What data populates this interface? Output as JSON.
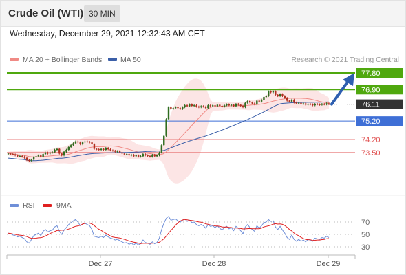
{
  "header": {
    "title": "Crude Oil (WTI)",
    "timeframe": "30 MIN"
  },
  "timestamp": "Wednesday, December 29, 2021 12:32:43 AM CET",
  "legend": {
    "items": [
      {
        "label": "MA 20 + Bollinger Bands",
        "color": "#f08a85"
      },
      {
        "label": "MA 50",
        "color": "#3b5fa8"
      }
    ],
    "credit": "Research © 2021 Trading Central"
  },
  "rsi_legend": {
    "items": [
      {
        "label": "RSI",
        "color": "#6f8fd8"
      },
      {
        "label": "9MA",
        "color": "#e02020"
      }
    ]
  },
  "levels": [
    {
      "label": "77.80",
      "value": 77.8,
      "kind": "resistance"
    },
    {
      "label": "76.90",
      "value": 76.9,
      "kind": "resistance"
    },
    {
      "label": "76.11",
      "value": 76.11,
      "kind": "current"
    },
    {
      "label": "75.20",
      "value": 75.2,
      "kind": "pivot"
    },
    {
      "label": "74.20",
      "value": 74.2,
      "kind": "support"
    },
    {
      "label": "73.50",
      "value": 73.5,
      "kind": "support"
    }
  ],
  "rsi_axis": [
    "70",
    "50",
    "30"
  ],
  "x_axis": [
    "Dec 27",
    "Dec 28",
    "Dec 29"
  ],
  "colors": {
    "resistance": "#4fa80e",
    "pivot": "#3e6fd6",
    "support": "#e05050",
    "current": "#333333",
    "candle_up": "#2f6b1f",
    "candle_down": "#b03020",
    "arrow": "#2e5fb0"
  },
  "chart_data": {
    "type": "candlestick",
    "ylim": [
      72.2,
      78.4
    ],
    "closes": [
      73.45,
      73.42,
      73.4,
      73.35,
      73.3,
      73.32,
      73.28,
      73.22,
      73.1,
      73.05,
      73.12,
      73.25,
      73.3,
      73.35,
      73.28,
      73.42,
      73.5,
      73.45,
      73.5,
      73.52,
      73.65,
      73.7,
      73.45,
      73.35,
      73.55,
      73.65,
      73.8,
      73.9,
      74.0,
      74.1,
      74.05,
      73.95,
      74.05,
      74.1,
      74.08,
      74.05,
      73.95,
      73.7,
      73.68,
      73.65,
      73.7,
      73.65,
      73.75,
      73.68,
      73.62,
      73.6,
      73.55,
      73.58,
      73.52,
      73.45,
      73.4,
      73.42,
      73.35,
      73.38,
      73.3,
      73.35,
      73.28,
      73.3,
      73.42,
      73.35,
      73.32,
      73.28,
      73.38,
      73.3,
      73.35,
      73.5,
      73.9,
      74.4,
      75.3,
      75.95,
      75.85,
      75.9,
      75.95,
      75.9,
      75.85,
      75.95,
      76.05,
      76.0,
      76.1,
      76.02,
      76.05,
      75.98,
      75.95,
      76.0,
      75.98,
      75.9,
      76.05,
      76.0,
      76.05,
      76.0,
      76.08,
      76.02,
      75.98,
      76.05,
      76.1,
      76.05,
      76.08,
      76.0,
      76.12,
      76.08,
      76.02,
      75.95,
      76.18,
      76.28,
      76.2,
      76.15,
      76.1,
      76.3,
      76.25,
      76.35,
      76.5,
      76.55,
      76.8,
      76.75,
      76.8,
      76.62,
      76.55,
      76.65,
      76.55,
      76.45,
      76.3,
      76.25,
      76.35,
      76.2,
      76.15,
      76.18,
      76.12,
      76.15,
      76.08,
      76.12,
      76.1,
      76.05,
      76.12,
      76.1,
      76.08,
      76.12,
      76.1,
      76.15,
      76.11
    ],
    "rsi": [
      52,
      51,
      49,
      48,
      46,
      47,
      45,
      43,
      38,
      36,
      42,
      48,
      50,
      52,
      48,
      55,
      58,
      54,
      56,
      57,
      62,
      64,
      55,
      50,
      57,
      61,
      66,
      69,
      72,
      74,
      70,
      64,
      67,
      68,
      66,
      64,
      58,
      47,
      46,
      45,
      47,
      45,
      49,
      46,
      44,
      43,
      41,
      42,
      40,
      38,
      36,
      37,
      34,
      36,
      33,
      36,
      33,
      35,
      41,
      37,
      36,
      34,
      38,
      35,
      37,
      44,
      58,
      68,
      76,
      79,
      73,
      74,
      75,
      72,
      70,
      73,
      75,
      71,
      73,
      69,
      70,
      66,
      64,
      66,
      64,
      60,
      66,
      63,
      64,
      61,
      64,
      60,
      57,
      61,
      63,
      59,
      61,
      56,
      63,
      60,
      56,
      51,
      62,
      66,
      61,
      58,
      55,
      64,
      60,
      64,
      69,
      70,
      74,
      71,
      72,
      62,
      58,
      63,
      57,
      52,
      45,
      42,
      49,
      42,
      39,
      42,
      39,
      41,
      38,
      42,
      41,
      39,
      44,
      43,
      42,
      45,
      44,
      47,
      45
    ]
  }
}
